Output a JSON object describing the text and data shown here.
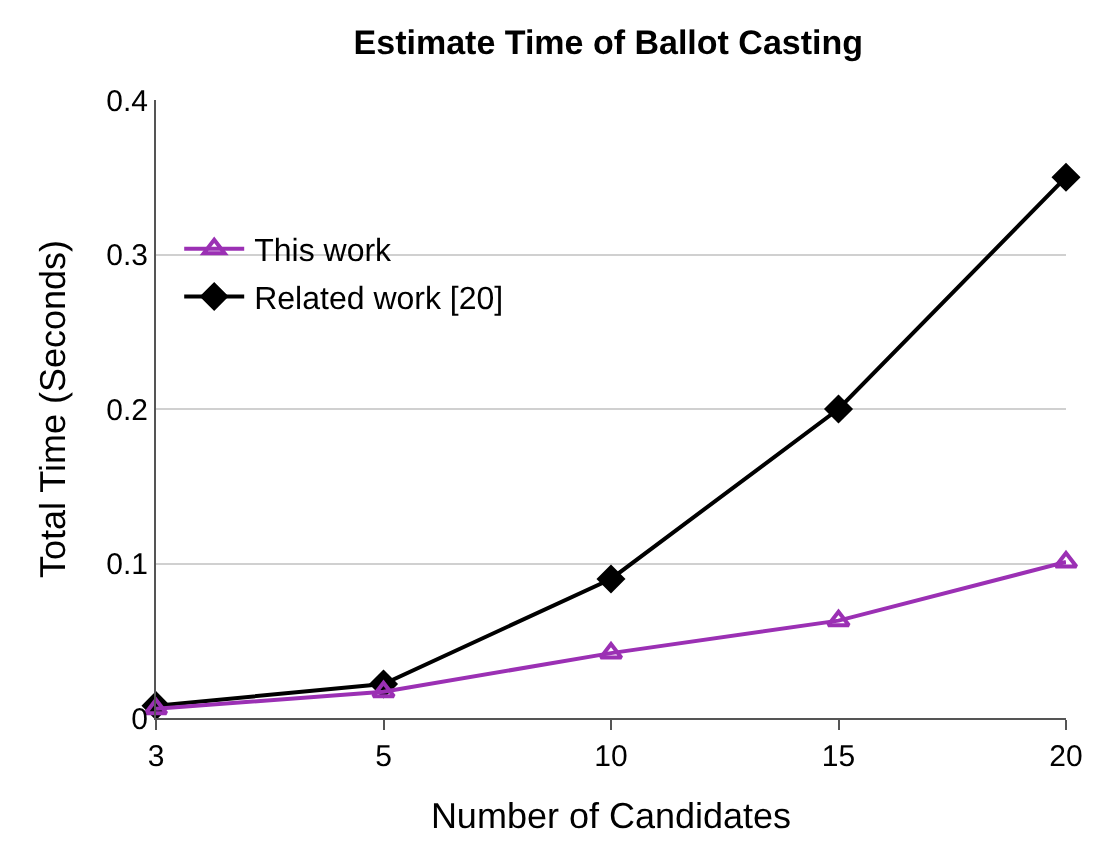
{
  "chart_data": {
    "type": "line",
    "title": "Estimate Time of Ballot Casting",
    "xlabel": "Number of Candidates",
    "ylabel": "Total Time (Seconds)",
    "categories": [
      "3",
      "5",
      "10",
      "15",
      "20"
    ],
    "series": [
      {
        "name": "This work",
        "color": "#9b30b4",
        "marker": "triangle-open",
        "values": [
          0.006,
          0.017,
          0.042,
          0.063,
          0.101
        ]
      },
      {
        "name": "Related work [20]",
        "color": "#000000",
        "marker": "diamond",
        "values": [
          0.008,
          0.022,
          0.09,
          0.2,
          0.35
        ]
      }
    ],
    "ylim": [
      0,
      0.4
    ],
    "yticks": [
      0,
      0.1,
      0.2,
      0.3,
      0.4
    ],
    "grid": "y",
    "legend": "left",
    "line_style": "solid"
  }
}
